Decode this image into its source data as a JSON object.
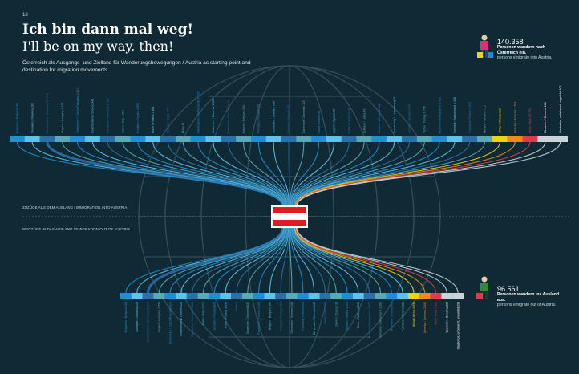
{
  "page_number": "18",
  "title_de": "Ich bin dann mal weg!",
  "title_en": "I'll be on my way, then!",
  "subtitle": "Österreich als Ausgangs- und Zielland für Wanderungsbewegungen / Austria as starting point and destination for migration movements",
  "immigration": {
    "count": "140.358",
    "text_de": "Personen wandern nach Österreich ein.",
    "text_en": "persons emigrate into Austria.",
    "section_label": "ZUZÜGE AUS DEM AUSLAND / IMMIGRATION INTO AUSTRIA"
  },
  "emigration": {
    "count": "96.561",
    "text_de": "Personen wandern ins Ausland aus.",
    "text_en": "persons emigrate out of Austria.",
    "section_label": "WEGZÜGE IN DAS AUSLAND / EMIGRATION OUT OF AUSTRIA"
  },
  "colors": {
    "background": "#0f2a35",
    "blue_1": "#1f8fd4",
    "blue_2": "#5cc3ea",
    "blue_3": "#2b6fa8",
    "teal": "#5aa9b8",
    "yellow": "#f2d20a",
    "orange": "#f08a1c",
    "red": "#e23a4d",
    "grey": "#c9d3d8",
    "flag_red": "#e11b22",
    "person_pink": "#d9317a",
    "person_green": "#2e8b3e"
  },
  "icons": [
    "person-arrival-icon",
    "person-departure-icon",
    "suitcase-icon",
    "austria-flag-icon",
    "globe-icon"
  ],
  "top_labels": [
    "Bulgarien / Bulgaria 380",
    "Slowakei / Slovakia 162",
    "Deutschland / Germany 17.778",
    "Ungarn / Hungary 1.133",
    "Tschechien / Czech Republic 1.021",
    "Griechenland / Greece 342",
    "Rumänien / Romania 1.413",
    "Italien / Italy 1.684",
    "Kroatien / Croatia 1.058",
    "Polen / Poland 2.164",
    "Spanien / Spain 479",
    "Malta 11",
    "Niederlande / Netherlands 1.035",
    "Slowenien / Slovenia 1.056",
    "Frankreich / France 1.021",
    "Belgien / Belgium 210",
    "Portugal / Portugal 233",
    "Schweden / Sweden 200",
    "Finnland / Finland 181",
    "Dänemark / Denmark 115",
    "Irland / Ireland 69",
    "Zypern / Cyprus 20",
    "Estland / Estonia 25",
    "Lettland / Latvia 46",
    "Litauen / Lithuania 121",
    "Luxemburg / Luxembourg 11",
    "Serbien / Serbia 3.876",
    "Türkei / Turkey 6.775",
    "Bosnien-Herzegowina 3.520",
    "Schweiz / Switzerland 1.168",
    "Russland / Russia 1.005",
    "Ukraine / Ukraine 712",
    "Afrika / Africa 2.920",
    "Amerika / America 2.704",
    "Asien / Asia 10.755",
    "Ozeanien / Oceania 106",
    "Staatenlos, unbekannt, ungeklärt 106"
  ],
  "bottom_labels": [
    "Bulgarien / Bulgaria 288",
    "Slowakei / Slovakia 126",
    "Deutschland / Germany 19.830",
    "Ungarn / Hungary 1.054",
    "Tschechien / Czech Republic 819",
    "Griechenland / Greece 316",
    "Rumänien / Romania 1.018",
    "Italien / Italy 1.313",
    "Kroatien / Croatia 820",
    "Polen / Poland 1.636",
    "Malta 5",
    "Slowenien / Slovenia 830",
    "Frankreich / France 1.190",
    "Belgien / Belgium 190",
    "Portugal / Portugal 163",
    "Schweden / Sweden 269",
    "Finnland / Finland 106",
    "Dänemark / Denmark 132",
    "Irland / Ireland 81",
    "Zypern / Cyprus 19",
    "Serbien / Serbia 3.200",
    "Türkei / Turkey 3.906",
    "Bosnien-Herzegowina 1.897",
    "Schweiz / Switzerland 2.281",
    "Russland / Russia 565",
    "Ukraine / Ukraine 381",
    "Afrika / Africa 1.096",
    "Amerika / America 2.362",
    "Asien / Asia 7.985",
    "Ozeanien / Oceania 235",
    "Staatenlos, unbekannt, ungeklärt 235"
  ]
}
